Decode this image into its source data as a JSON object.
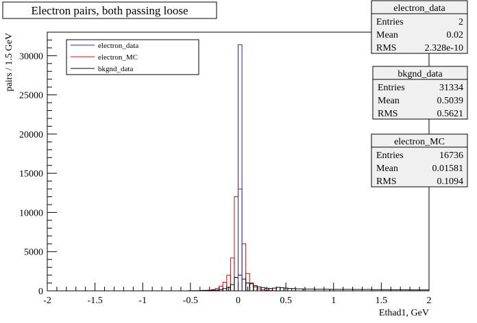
{
  "chart_data": {
    "type": "histogram",
    "title": "Electron pairs, both passing loose",
    "xlabel": "Ethad1, GeV",
    "ylabel": "pairs / 1.5 GeV",
    "xlim": [
      -2,
      2
    ],
    "ylim": [
      0,
      33000
    ],
    "x_ticks": [
      -2,
      -1.5,
      -1,
      -0.5,
      0,
      0.5,
      1,
      1.5,
      2
    ],
    "x_tick_labels": [
      "-2",
      "-1.5",
      "-1",
      "-0.5",
      "0",
      "0.5",
      "1",
      "1.5",
      "2"
    ],
    "y_ticks": [
      0,
      5000,
      10000,
      15000,
      20000,
      25000,
      30000
    ],
    "y_tick_labels": [
      "0",
      "5000",
      "10000",
      "15000",
      "20000",
      "25000",
      "30000"
    ],
    "bin_width": 0.04,
    "series": [
      {
        "name": "electron_data",
        "color": "#2020cc",
        "bins": [
          {
            "x0": 0.0,
            "x1": 0.04,
            "y": 31400
          }
        ]
      },
      {
        "name": "electron_MC",
        "color": "#dd0000",
        "bins": [
          {
            "x0": -0.4,
            "x1": -0.36,
            "y": 30
          },
          {
            "x0": -0.36,
            "x1": -0.32,
            "y": 60
          },
          {
            "x0": -0.32,
            "x1": -0.28,
            "y": 90
          },
          {
            "x0": -0.28,
            "x1": -0.24,
            "y": 150
          },
          {
            "x0": -0.24,
            "x1": -0.2,
            "y": 300
          },
          {
            "x0": -0.2,
            "x1": -0.16,
            "y": 600
          },
          {
            "x0": -0.16,
            "x1": -0.12,
            "y": 1100
          },
          {
            "x0": -0.12,
            "x1": -0.08,
            "y": 2000
          },
          {
            "x0": -0.08,
            "x1": -0.04,
            "y": 4200
          },
          {
            "x0": -0.04,
            "x1": 0.0,
            "y": 12000
          },
          {
            "x0": 0.0,
            "x1": 0.04,
            "y": 13000
          },
          {
            "x0": 0.04,
            "x1": 0.08,
            "y": 6000
          },
          {
            "x0": 0.08,
            "x1": 0.12,
            "y": 2200
          },
          {
            "x0": 0.12,
            "x1": 0.16,
            "y": 1000
          },
          {
            "x0": 0.16,
            "x1": 0.2,
            "y": 500
          },
          {
            "x0": 0.2,
            "x1": 0.24,
            "y": 250
          },
          {
            "x0": 0.24,
            "x1": 0.28,
            "y": 130
          },
          {
            "x0": 0.28,
            "x1": 0.32,
            "y": 80
          },
          {
            "x0": 0.32,
            "x1": 0.36,
            "y": 50
          },
          {
            "x0": 0.36,
            "x1": 0.4,
            "y": 30
          }
        ]
      },
      {
        "name": "bkgnd_data",
        "color": "#000000",
        "bins": [
          {
            "x0": -0.52,
            "x1": -0.4,
            "y": 20
          },
          {
            "x0": -0.4,
            "x1": -0.28,
            "y": 50
          },
          {
            "x0": -0.28,
            "x1": -0.2,
            "y": 100
          },
          {
            "x0": -0.2,
            "x1": -0.16,
            "y": 180
          },
          {
            "x0": -0.16,
            "x1": -0.12,
            "y": 280
          },
          {
            "x0": -0.12,
            "x1": -0.08,
            "y": 450
          },
          {
            "x0": -0.08,
            "x1": -0.04,
            "y": 800
          },
          {
            "x0": -0.04,
            "x1": 0.0,
            "y": 1700
          },
          {
            "x0": 0.0,
            "x1": 0.04,
            "y": 2000
          },
          {
            "x0": 0.04,
            "x1": 0.08,
            "y": 1500
          },
          {
            "x0": 0.08,
            "x1": 0.12,
            "y": 1000
          },
          {
            "x0": 0.12,
            "x1": 0.16,
            "y": 900
          },
          {
            "x0": 0.16,
            "x1": 0.2,
            "y": 650
          },
          {
            "x0": 0.2,
            "x1": 0.24,
            "y": 500
          },
          {
            "x0": 0.24,
            "x1": 0.28,
            "y": 420
          },
          {
            "x0": 0.28,
            "x1": 0.32,
            "y": 330
          },
          {
            "x0": 0.32,
            "x1": 0.36,
            "y": 300
          },
          {
            "x0": 0.36,
            "x1": 0.4,
            "y": 350
          },
          {
            "x0": 0.4,
            "x1": 0.44,
            "y": 450
          },
          {
            "x0": 0.44,
            "x1": 0.48,
            "y": 400
          },
          {
            "x0": 0.48,
            "x1": 0.52,
            "y": 350
          },
          {
            "x0": 0.52,
            "x1": 0.56,
            "y": 300
          },
          {
            "x0": 0.56,
            "x1": 0.6,
            "y": 280
          },
          {
            "x0": 0.6,
            "x1": 0.68,
            "y": 250
          },
          {
            "x0": 0.68,
            "x1": 0.8,
            "y": 230
          },
          {
            "x0": 0.8,
            "x1": 0.96,
            "y": 210
          },
          {
            "x0": 0.96,
            "x1": 1.2,
            "y": 190
          },
          {
            "x0": 1.2,
            "x1": 1.4,
            "y": 170
          },
          {
            "x0": 1.4,
            "x1": 1.6,
            "y": 150
          },
          {
            "x0": 1.6,
            "x1": 1.8,
            "y": 140
          },
          {
            "x0": 1.8,
            "x1": 2.0,
            "y": 120
          }
        ]
      }
    ],
    "legend": {
      "position": "top-left",
      "entries": [
        {
          "label": "electron_data",
          "color": "#2020cc"
        },
        {
          "label": "electron_MC",
          "color": "#dd0000"
        },
        {
          "label": "bkgnd_data",
          "color": "#000000"
        }
      ]
    },
    "stat_boxes": [
      {
        "title": "electron_data",
        "rows": [
          {
            "label": "Entries",
            "value": "2"
          },
          {
            "label": "Mean",
            "value": "0.02"
          },
          {
            "label": "RMS",
            "value": "2.328e-10"
          }
        ]
      },
      {
        "title": "bkgnd_data",
        "rows": [
          {
            "label": "Entries",
            "value": "31334"
          },
          {
            "label": "Mean",
            "value": "0.5039"
          },
          {
            "label": "RMS",
            "value": "0.5621"
          }
        ]
      },
      {
        "title": "electron_MC",
        "rows": [
          {
            "label": "Entries",
            "value": "16736"
          },
          {
            "label": "Mean",
            "value": "0.01581"
          },
          {
            "label": "RMS",
            "value": "0.1094"
          }
        ]
      }
    ]
  }
}
